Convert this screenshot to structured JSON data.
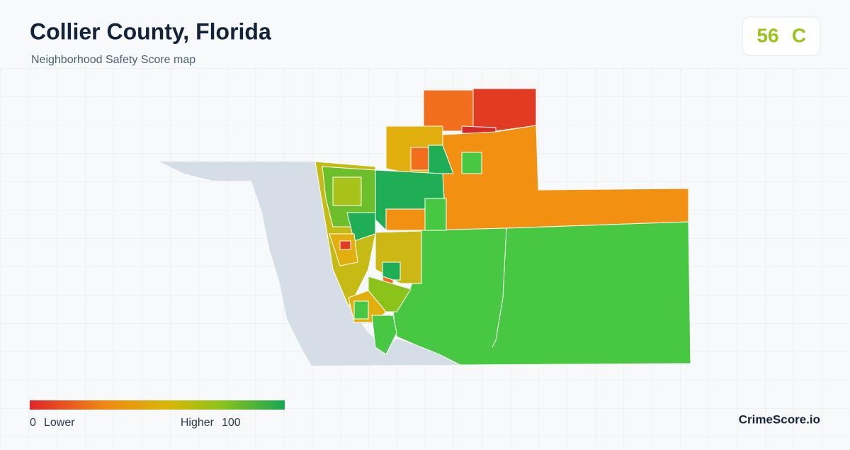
{
  "header": {
    "title": "Collier County, Florida",
    "subtitle": "Neighborhood Safety Score map"
  },
  "score": {
    "value": 56,
    "grade": "C"
  },
  "legend": {
    "min": 0,
    "min_label": "Lower",
    "max_label": "Higher",
    "max": 100
  },
  "brand": "CrimeScore.io"
}
